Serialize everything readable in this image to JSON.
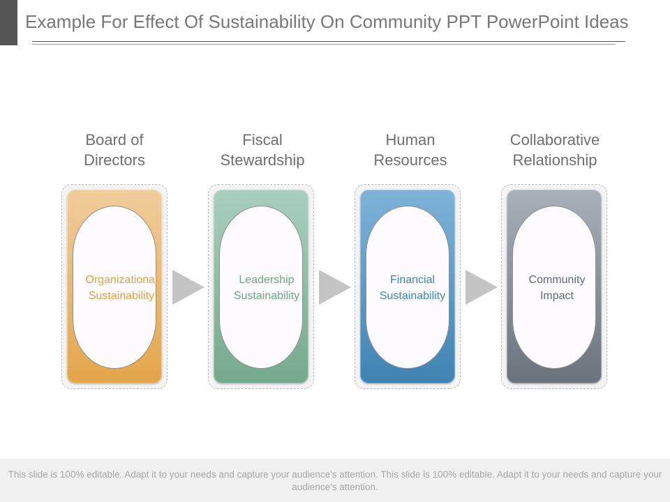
{
  "title": "Example For Effect Of Sustainability On Community PPT PowerPoint Ideas",
  "steps": [
    {
      "heading_line1": "Board of",
      "heading_line2": "Directors",
      "label_line1": "Organizational",
      "label_line2": "Sustainability",
      "color_top": "#f1cc9c",
      "color_bottom": "#e3a54a",
      "label_color": "#e0a040"
    },
    {
      "heading_line1": "Fiscal",
      "heading_line2": "Stewardship",
      "label_line1": "Leadership",
      "label_line2": "Sustainability",
      "color_top": "#a9cfbf",
      "color_bottom": "#74aa8c",
      "label_color": "#6aa584"
    },
    {
      "heading_line1": "Human",
      "heading_line2": "Resources",
      "label_line1": "Financial",
      "label_line2": "Sustainability",
      "color_top": "#7fb3d8",
      "color_bottom": "#3f83b2",
      "label_color": "#3a84b5"
    },
    {
      "heading_line1": "Collaborative",
      "heading_line2": "Relationship",
      "label_line1": "Community",
      "label_line2": "Impact",
      "color_top": "#a8b0ba",
      "color_bottom": "#6a737c",
      "label_color": "#5f6a75"
    }
  ],
  "arrow_color": "#c4c4c4",
  "footer": "This slide is 100% editable. Adapt it to your needs and capture your audience's attention. This slide is 100% editable. Adapt it to your needs and capture your audience's attention."
}
